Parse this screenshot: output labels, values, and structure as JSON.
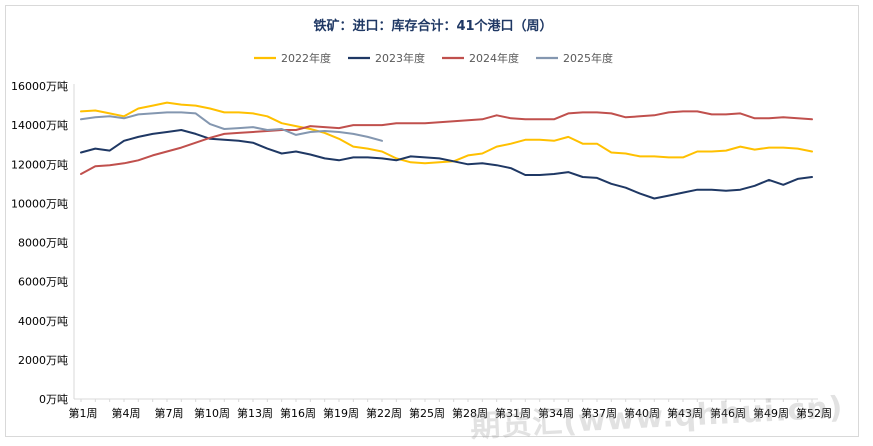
{
  "chart_data": {
    "type": "line",
    "title": "铁矿：进口：库存合计：41个港口（周）",
    "xlabel": "",
    "ylabel": "",
    "ylim": [
      0,
      16000
    ],
    "y_ticks": [
      0,
      2000,
      4000,
      6000,
      8000,
      10000,
      12000,
      14000,
      16000
    ],
    "y_tick_labels": [
      "0万吨",
      "2000万吨",
      "4000万吨",
      "6000万吨",
      "8000万吨",
      "10000万吨",
      "12000万吨",
      "14000万吨",
      "16000万吨"
    ],
    "x_tick_labels": [
      "第1周",
      "第4周",
      "第7周",
      "第10周",
      "第13周",
      "第16周",
      "第19周",
      "第22周",
      "第25周",
      "第28周",
      "第31周",
      "第34周",
      "第37周",
      "第40周",
      "第43周",
      "第46周",
      "第49周",
      "第52周"
    ],
    "x_tick_weeks": [
      1,
      4,
      7,
      10,
      13,
      16,
      19,
      22,
      25,
      28,
      31,
      34,
      37,
      40,
      43,
      46,
      49,
      52
    ],
    "legend_position": "top-center",
    "grid": false,
    "series": [
      {
        "name": "2022年度",
        "color": "#ffc000",
        "values": [
          14700,
          14750,
          14600,
          14450,
          14850,
          15000,
          15150,
          15050,
          15000,
          14850,
          14650,
          14650,
          14600,
          14450,
          14100,
          13950,
          13800,
          13600,
          13300,
          12900,
          12800,
          12650,
          12300,
          12100,
          12050,
          12100,
          12150,
          12450,
          12550,
          12900,
          13050,
          13250,
          13250,
          13200,
          13400,
          13050,
          13050,
          12600,
          12550,
          12400,
          12400,
          12350,
          12350,
          12650,
          12650,
          12700,
          12900,
          12750,
          12850,
          12850,
          12800,
          12650
        ]
      },
      {
        "name": "2023年度",
        "color": "#1f3864",
        "values": [
          12600,
          12800,
          12700,
          13200,
          13400,
          13550,
          13650,
          13750,
          13550,
          13300,
          13250,
          13200,
          13100,
          12800,
          12550,
          12650,
          12500,
          12300,
          12200,
          12350,
          12350,
          12300,
          12200,
          12400,
          12350,
          12300,
          12150,
          12000,
          12050,
          11950,
          11800,
          11450,
          11450,
          11500,
          11600,
          11350,
          11300,
          11000,
          10800,
          10500,
          10250,
          10400,
          10550,
          10700,
          10700,
          10650,
          10700,
          10900,
          11200,
          10950,
          11250,
          11350
        ]
      },
      {
        "name": "2024年度",
        "color": "#c0504d",
        "values": [
          11500,
          11900,
          11950,
          12050,
          12200,
          12450,
          12650,
          12850,
          13100,
          13350,
          13550,
          13600,
          13650,
          13700,
          13750,
          13750,
          13950,
          13900,
          13850,
          14000,
          14000,
          14000,
          14100,
          14100,
          14100,
          14150,
          14200,
          14250,
          14300,
          14500,
          14350,
          14300,
          14300,
          14300,
          14600,
          14650,
          14650,
          14600,
          14400,
          14450,
          14500,
          14650,
          14700,
          14700,
          14550,
          14550,
          14600,
          14350,
          14350,
          14400,
          14350,
          14300
        ]
      },
      {
        "name": "2025年度",
        "color": "#8497b0",
        "values": [
          14300,
          14400,
          14450,
          14350,
          14550,
          14600,
          14650,
          14650,
          14600,
          14050,
          13800,
          13850,
          13900,
          13750,
          13800,
          13500,
          13650,
          13700,
          13650,
          13550,
          13400,
          13200
        ]
      }
    ]
  },
  "watermark": "期货汇(www.qhhui.cn)"
}
